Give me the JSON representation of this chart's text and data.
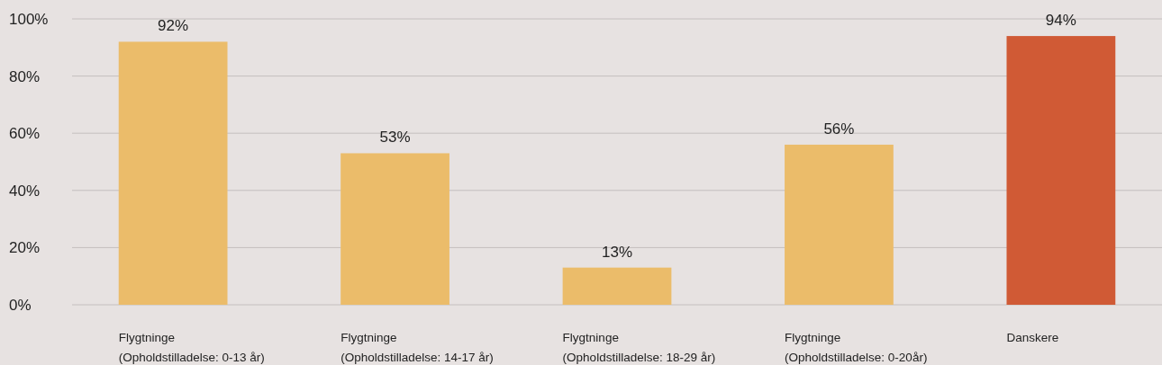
{
  "chart_data": {
    "type": "bar",
    "categories": [
      "Flygtninge\n(Opholdstilladelse: 0-13 år)",
      "Flygtninge\n(Opholdstilladelse: 14-17 år)",
      "Flygtninge\n(Opholdstilladelse: 18-29 år)",
      "Flygtninge\n(Opholdstilladelse: 0-20år)",
      "Danskere"
    ],
    "values": [
      92,
      53,
      13,
      56,
      94
    ],
    "colors": [
      "#ebbc6a",
      "#ebbc6a",
      "#ebbc6a",
      "#ebbc6a",
      "#d05a35"
    ],
    "value_labels": [
      "92%",
      "53%",
      "13%",
      "56%",
      "94%"
    ],
    "ylim": [
      0,
      100
    ],
    "yticks": [
      {
        "value": 0,
        "label": "0%"
      },
      {
        "value": 20,
        "label": "20%"
      },
      {
        "value": 40,
        "label": "40%"
      },
      {
        "value": 60,
        "label": "60%"
      },
      {
        "value": 80,
        "label": "80%"
      },
      {
        "value": 100,
        "label": "100%"
      }
    ],
    "grid": true
  }
}
